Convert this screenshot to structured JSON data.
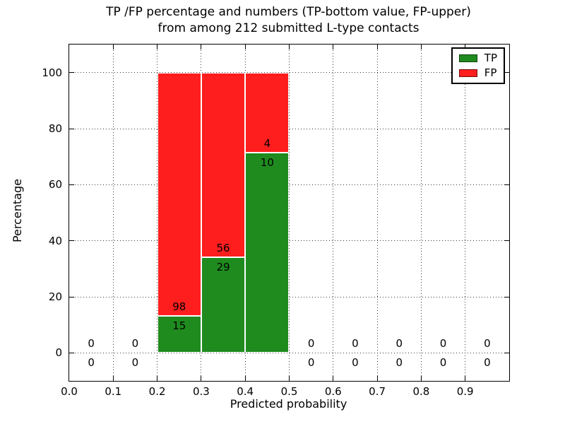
{
  "chart_data": {
    "type": "bar",
    "stacked": true,
    "title_line1": "TP /FP percentage and numbers (TP-bottom value, FP-upper)",
    "title_line2": "from among 212 submitted L-type contacts",
    "xlabel": "Predicted probability",
    "ylabel": "Percentage",
    "xlim": [
      0.0,
      1.0
    ],
    "ylim": [
      -10,
      110
    ],
    "xticks": [
      0.0,
      0.1,
      0.2,
      0.3,
      0.4,
      0.5,
      0.6,
      0.7,
      0.8,
      0.9
    ],
    "xtick_labels": [
      "0.0",
      "0.1",
      "0.2",
      "0.3",
      "0.4",
      "0.5",
      "0.6",
      "0.7",
      "0.8",
      "0.9"
    ],
    "yticks": [
      0,
      20,
      40,
      60,
      80,
      100
    ],
    "ytick_labels": [
      "0",
      "20",
      "40",
      "60",
      "80",
      "100"
    ],
    "grid": true,
    "grid_style": "dotted",
    "bar_width": 0.1,
    "colors": {
      "tp": "#1f8b1f",
      "fp": "#ff1e1e",
      "bar_edge": "#ffffff",
      "axis": "#000000"
    },
    "legend": {
      "position": "upper right",
      "items": [
        {
          "label": "TP",
          "color_key": "tp"
        },
        {
          "label": "FP",
          "color_key": "fp"
        }
      ]
    },
    "bins": [
      {
        "x_center": 0.05,
        "tp_count": 0,
        "fp_count": 0,
        "tp_pct": 0,
        "fp_pct": 0
      },
      {
        "x_center": 0.15,
        "tp_count": 0,
        "fp_count": 0,
        "tp_pct": 0,
        "fp_pct": 0
      },
      {
        "x_center": 0.25,
        "tp_count": 15,
        "fp_count": 98,
        "tp_pct": 13.27,
        "fp_pct": 86.73
      },
      {
        "x_center": 0.35,
        "tp_count": 29,
        "fp_count": 56,
        "tp_pct": 34.12,
        "fp_pct": 65.88
      },
      {
        "x_center": 0.45,
        "tp_count": 10,
        "fp_count": 4,
        "tp_pct": 71.43,
        "fp_pct": 28.57
      },
      {
        "x_center": 0.55,
        "tp_count": 0,
        "fp_count": 0,
        "tp_pct": 0,
        "fp_pct": 0
      },
      {
        "x_center": 0.65,
        "tp_count": 0,
        "fp_count": 0,
        "tp_pct": 0,
        "fp_pct": 0
      },
      {
        "x_center": 0.75,
        "tp_count": 0,
        "fp_count": 0,
        "tp_pct": 0,
        "fp_pct": 0
      },
      {
        "x_center": 0.85,
        "tp_count": 0,
        "fp_count": 0,
        "tp_pct": 0,
        "fp_pct": 0
      },
      {
        "x_center": 0.95,
        "tp_count": 0,
        "fp_count": 0,
        "tp_pct": 0,
        "fp_pct": 0
      }
    ]
  }
}
